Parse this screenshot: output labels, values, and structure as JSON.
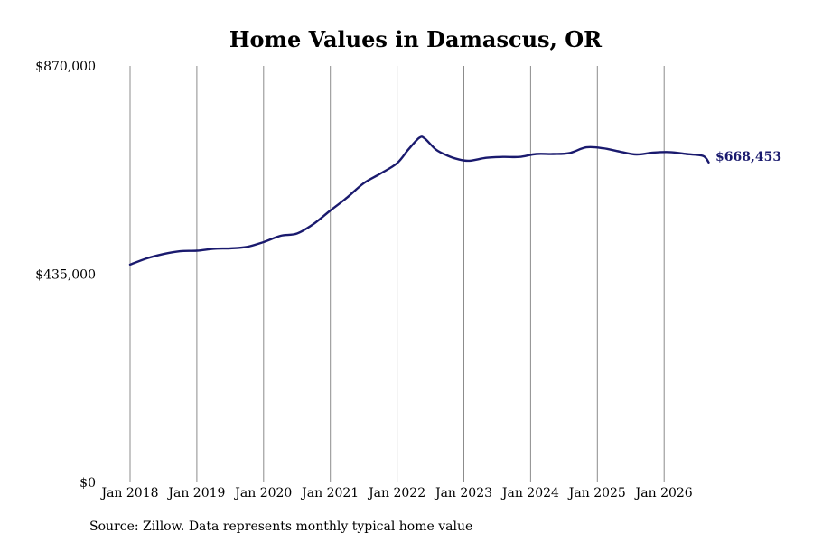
{
  "chart_data": {
    "type": "line",
    "title": "Home Values in Damascus, OR",
    "xlabel": "",
    "ylabel": "",
    "ylim": [
      0,
      870000
    ],
    "y_ticks": [
      0,
      435000,
      870000
    ],
    "y_tick_labels": [
      "$0",
      "$435,000",
      "$870,000"
    ],
    "x_ticks": [
      "2018-01",
      "2019-01",
      "2020-01",
      "2021-01",
      "2022-01",
      "2023-01",
      "2024-01",
      "2025-01",
      "2026-01"
    ],
    "x_tick_labels": [
      "Jan 2018",
      "Jan 2019",
      "Jan 2020",
      "Jan 2021",
      "Jan 2022",
      "Jan 2023",
      "Jan 2024",
      "Jan 2025",
      "Jan 2026"
    ],
    "grid": "vertical",
    "line_color": "#1a1a6e",
    "end_label": "$668,453",
    "series": [
      {
        "x": [
          "2018-01",
          "2018-04",
          "2018-07",
          "2018-10",
          "2019-01",
          "2019-04",
          "2019-07",
          "2019-10",
          "2020-01",
          "2020-04",
          "2020-07",
          "2020-10",
          "2021-01",
          "2021-04",
          "2021-07",
          "2021-10",
          "2022-01",
          "2022-03",
          "2022-05",
          "2022-06",
          "2022-08",
          "2022-10",
          "2022-12",
          "2023-02",
          "2023-05",
          "2023-08",
          "2023-11",
          "2024-02",
          "2024-05",
          "2024-08",
          "2024-11",
          "2025-02",
          "2025-05",
          "2025-08",
          "2025-11",
          "2026-02",
          "2026-05",
          "2026-08",
          "2026-09"
        ],
        "values": [
          455000,
          468000,
          477000,
          483000,
          484000,
          488000,
          489000,
          492000,
          502000,
          515000,
          520000,
          540000,
          568000,
          595000,
          625000,
          645000,
          667000,
          695000,
          720000,
          718000,
          695000,
          683000,
          675000,
          672000,
          678000,
          680000,
          680000,
          686000,
          686000,
          688000,
          700000,
          698000,
          691000,
          685000,
          689000,
          690000,
          686000,
          682000,
          668453
        ]
      }
    ]
  },
  "source_note": "Source: Zillow. Data represents monthly typical home value"
}
